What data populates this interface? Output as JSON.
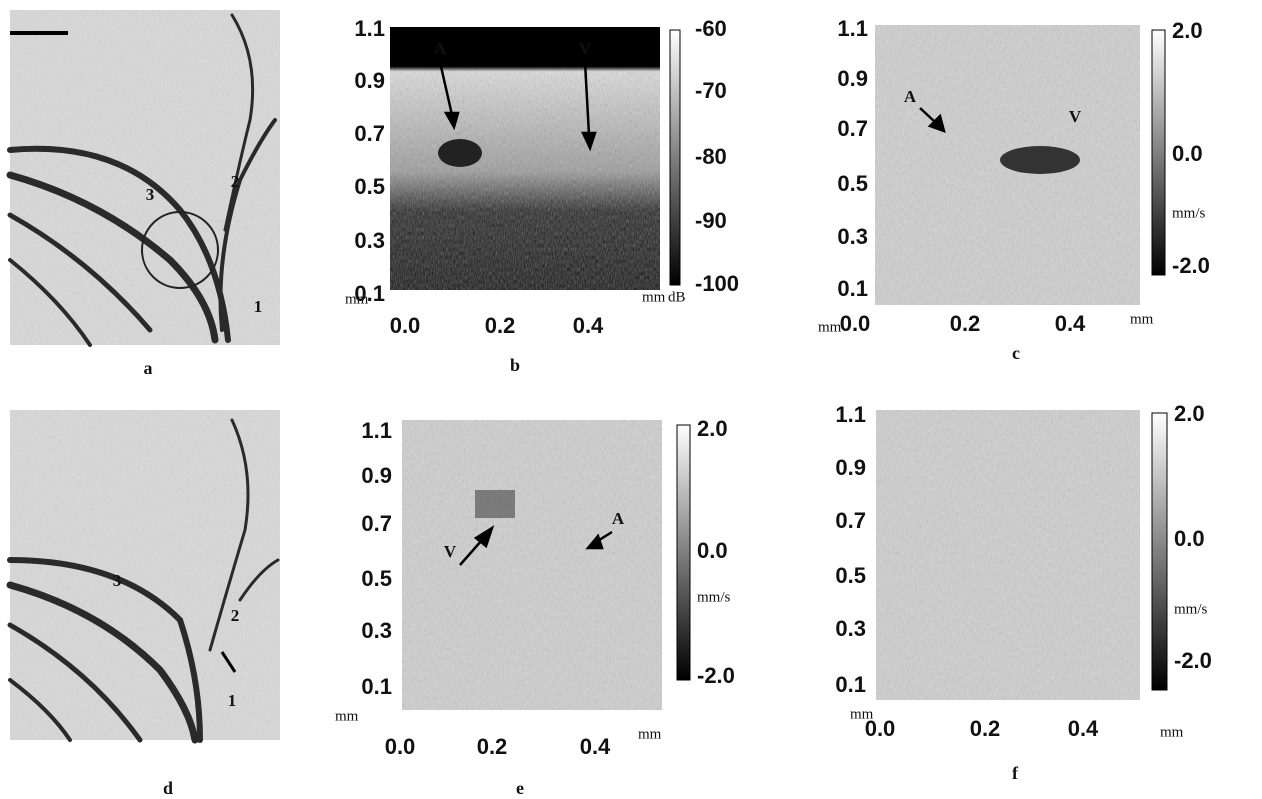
{
  "panels": [
    {
      "label": "a",
      "annotations": [
        "1",
        "2",
        "3"
      ]
    },
    {
      "label": "b",
      "y_ticks": [
        "1.1",
        "0.9",
        "0.7",
        "0.5",
        "0.3",
        "0.1"
      ],
      "x_ticks": [
        "0.0",
        "0.2",
        "0.4"
      ],
      "y_unit": "mm",
      "x_unit": "mm",
      "colorbar_ticks": [
        "-60",
        "-70",
        "-80",
        "-90",
        "-100"
      ],
      "colorbar_unit": "dB",
      "annotations": [
        "A",
        "V"
      ]
    },
    {
      "label": "c",
      "y_ticks": [
        "1.1",
        "0.9",
        "0.7",
        "0.5",
        "0.3",
        "0.1"
      ],
      "x_ticks": [
        "0.0",
        "0.2",
        "0.4"
      ],
      "y_unit": "mm",
      "x_unit": "mm",
      "colorbar_ticks": [
        "2.0",
        "0.0",
        "-2.0"
      ],
      "colorbar_unit": "mm/s",
      "annotations": [
        "A",
        "V"
      ]
    },
    {
      "label": "d",
      "annotations": [
        "1",
        "2",
        "3"
      ]
    },
    {
      "label": "e",
      "y_ticks": [
        "1.1",
        "0.9",
        "0.7",
        "0.5",
        "0.3",
        "0.1"
      ],
      "x_ticks": [
        "0.0",
        "0.2",
        "0.4"
      ],
      "y_unit": "mm",
      "x_unit": "mm",
      "colorbar_ticks": [
        "2.0",
        "0.0",
        "-2.0"
      ],
      "colorbar_unit": "mm/s",
      "annotations": [
        "V",
        "A"
      ]
    },
    {
      "label": "f",
      "y_ticks": [
        "1.1",
        "0.9",
        "0.7",
        "0.5",
        "0.3",
        "0.1"
      ],
      "x_ticks": [
        "0.0",
        "0.2",
        "0.4"
      ],
      "y_unit": "mm",
      "x_unit": "mm",
      "colorbar_ticks": [
        "2.0",
        "0.0",
        "-2.0"
      ],
      "colorbar_unit": "mm/s"
    }
  ]
}
